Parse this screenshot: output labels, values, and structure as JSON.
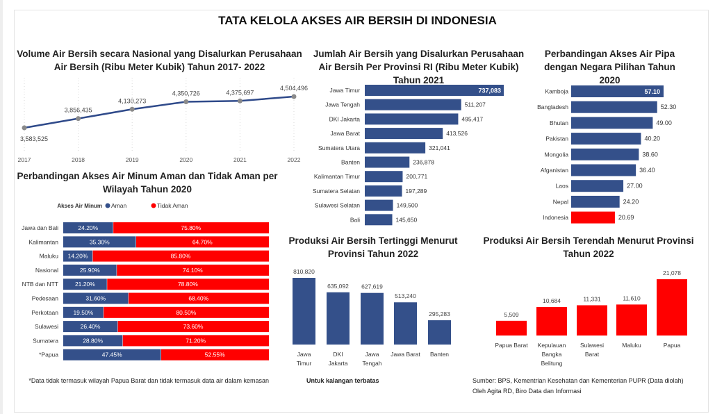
{
  "title": "TATA KELOLA AKSES AIR BERSIH DI INDONESIA",
  "notes": {
    "papua": "*Data tidak termasuk wilayah Papua Barat dan tidak termasuk data air dalam kemasan",
    "limited": "Untuk kalangan terbatas",
    "source1": "Sumber: BPS, Kementrian Kesehatan dan Kementerian PUPR (Data diolah)",
    "source2": "Oleh Agita RD, Biro Data dan Informasi"
  },
  "colors": {
    "blue": "#34508a",
    "red": "#ff0000",
    "line": "#2f4a8a",
    "marker": "#8a8a8a"
  },
  "chart_data": [
    {
      "type": "line",
      "title": "Volume Air Bersih secara Nasional yang Disalurkan Perusahaan Air Bersih (Ribu Meter Kubik) Tahun 2017- 2022",
      "x": [
        "2017",
        "2018",
        "2019",
        "2020",
        "2021",
        "2022"
      ],
      "values": [
        3583525,
        3856435,
        4130273,
        4350726,
        4375697,
        4504496
      ],
      "labels": [
        "3,583,525",
        "3,856,435",
        "4,130,273",
        "4,350,726",
        "4,375,697",
        "4,504,496"
      ],
      "grid": "vertical dotted"
    },
    {
      "type": "bar",
      "orientation": "horizontal",
      "title": "Jumlah Air Bersih yang Disalurkan Perusahaan Air Bersih Per Provinsi RI (Ribu Meter Kubik) Tahun 2021",
      "categories": [
        "Jawa Timur",
        "Jawa Tengah",
        "DKI Jakarta",
        "Jawa Barat",
        "Sumatera Utara",
        "Banten",
        "Kalimantan Timur",
        "Sumatera Selatan",
        "Sulawesi Selatan",
        "Bali"
      ],
      "values": [
        737083,
        511207,
        495417,
        413526,
        321041,
        236878,
        200771,
        197289,
        149500,
        145650
      ],
      "labels": [
        "737,083",
        "511,207",
        "495,417",
        "413,526",
        "321,041",
        "236,878",
        "200,771",
        "197,289",
        "149,500",
        "145,650"
      ],
      "xlim": [
        0,
        737083
      ]
    },
    {
      "type": "bar",
      "orientation": "horizontal",
      "title": "Perbandingan Akses Air Pipa dengan Negara Pilihan Tahun 2020",
      "categories": [
        "Kamboja",
        "Bangladesh",
        "Bhutan",
        "Pakistan",
        "Mongolia",
        "Afganistan",
        "Laos",
        "Nepal",
        "Indonesia"
      ],
      "values": [
        57.1,
        52.3,
        49.0,
        40.2,
        38.6,
        36.4,
        27.0,
        24.2,
        20.69
      ],
      "labels": [
        "57.10",
        "52.30",
        "49.00",
        "40.20",
        "38.60",
        "36.40",
        "27.00",
        "24.20",
        "20.69"
      ],
      "highlight": "Indonesia",
      "xlim": [
        -12,
        57.1
      ]
    },
    {
      "type": "bar",
      "orientation": "horizontal-stacked-100",
      "title": "Perbandingan Akses Air Minum Aman dan Tidak Aman per Wilayah Tahun 2020",
      "legend_title": "Akses Air Minum",
      "legend_position": "top",
      "categories": [
        "Jawa dan Bali",
        "Kalimantan",
        "Maluku",
        "Nasional",
        "NTB dan NTT",
        "Pedesaan",
        "Perkotaan",
        "Sulawesi",
        "Sumatera",
        "*Papua"
      ],
      "series": [
        {
          "name": "Aman",
          "values": [
            24.2,
            35.3,
            14.2,
            25.9,
            21.2,
            31.6,
            19.5,
            26.4,
            28.8,
            47.45
          ],
          "labels": [
            "24.20%",
            "35.30%",
            "14.20%",
            "25.90%",
            "21.20%",
            "31.60%",
            "19.50%",
            "26.40%",
            "28.80%",
            "47.45%"
          ]
        },
        {
          "name": "Tidak Aman",
          "values": [
            75.8,
            64.7,
            85.8,
            74.1,
            78.8,
            68.4,
            80.5,
            73.6,
            71.2,
            52.55
          ],
          "labels": [
            "75.80%",
            "64.70%",
            "85.80%",
            "74.10%",
            "78.80%",
            "68.40%",
            "80.50%",
            "73.60%",
            "71.20%",
            "52.55%"
          ]
        }
      ]
    },
    {
      "type": "bar",
      "title": "Produksi Air Bersih Tertinggi Menurut Provinsi Tahun 2022",
      "categories": [
        "Jawa Timur",
        "DKI Jakarta",
        "Jawa Tengah",
        "Jawa Barat",
        "Banten"
      ],
      "values": [
        810820,
        635092,
        627619,
        513240,
        295283
      ],
      "labels": [
        "810,820",
        "635,092",
        "627,619",
        "513,240",
        "295,283"
      ],
      "ylim": [
        0,
        810820
      ]
    },
    {
      "type": "bar",
      "title": "Produksi Air Bersih Terendah Menurut Provinsi Tahun 2022",
      "categories": [
        "Papua Barat",
        "Kepulauan Bangka Belitung",
        "Sulawesi Barat",
        "Maluku",
        "Papua"
      ],
      "values": [
        5509,
        10684,
        11331,
        11610,
        21078
      ],
      "labels": [
        "5,509",
        "10,684",
        "11,331",
        "11,610",
        "21,078"
      ],
      "ylim": [
        0,
        21078
      ]
    }
  ]
}
